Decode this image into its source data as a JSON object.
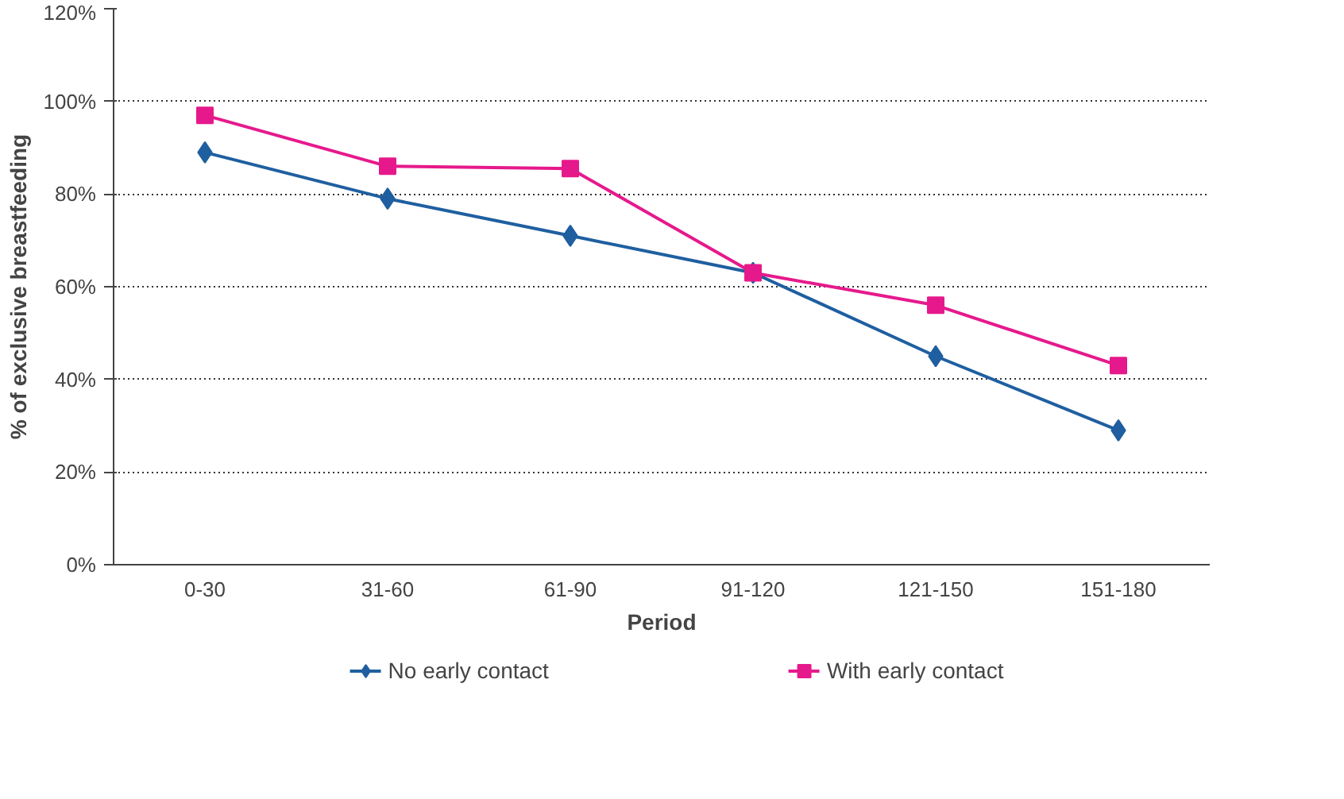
{
  "chart_data": {
    "type": "line",
    "xlabel": "Period",
    "ylabel": "% of exclusive breastfeeding",
    "categories": [
      "0-30",
      "31-60",
      "61-90",
      "91-120",
      "121-150",
      "151-180"
    ],
    "series": [
      {
        "name": "No early contact",
        "color": "#1f5fa0",
        "marker": "diamond",
        "values": [
          89,
          79,
          71,
          63,
          45,
          29
        ]
      },
      {
        "name": "With early contact",
        "color": "#e6198c",
        "marker": "square",
        "values": [
          97,
          86,
          85.5,
          63,
          56,
          43
        ]
      }
    ],
    "ylim": [
      0,
      120
    ],
    "yticks": [
      {
        "value": 0,
        "label": "0%"
      },
      {
        "value": 20,
        "label": "20%"
      },
      {
        "value": 40,
        "label": "40%"
      },
      {
        "value": 60,
        "label": "60%"
      },
      {
        "value": 80,
        "label": "80%"
      },
      {
        "value": 100,
        "label": "100%"
      },
      {
        "value": 120,
        "label": "120%"
      }
    ],
    "grid": "y",
    "legend": "bottom",
    "line_style": "solid"
  }
}
